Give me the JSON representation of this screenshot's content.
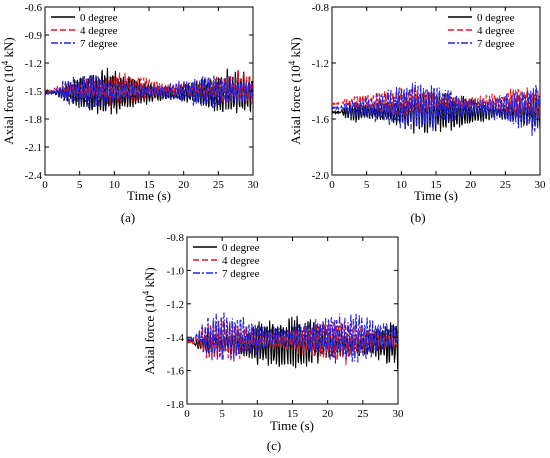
{
  "chart_data": [
    {
      "type": "line",
      "caption": "(a)",
      "xlabel": "Time (s)",
      "ylabel": "Axial force (10",
      "ylabel_sup": "4",
      "ylabel_tail": " kN)",
      "xlim": [
        0,
        30
      ],
      "ylim": [
        -2.4,
        -0.6
      ],
      "xticks": [
        0,
        5,
        10,
        15,
        20,
        25,
        30
      ],
      "yticks": [
        -2.4,
        -2.1,
        -1.8,
        -1.5,
        -1.2,
        -0.9,
        -0.6
      ],
      "ytick_labels": [
        "-2.4",
        "-2.1",
        "-1.8",
        "-1.5",
        "-1.2",
        "-0.9",
        "-0.6"
      ],
      "legend_position": "top-left",
      "series": [
        {
          "name": "0 degree",
          "color": "#000000",
          "dash": "solid",
          "baseline": -1.52,
          "start": -1.52,
          "amp": 0.17,
          "growth": 1.4,
          "seed": 11
        },
        {
          "name": "4 degree",
          "color": "#e8191f",
          "dash": "dashed",
          "baseline": -1.48,
          "start": -1.5,
          "amp": 0.12,
          "growth": 1.6,
          "seed": 23
        },
        {
          "name": "7 degree",
          "color": "#2323e0",
          "dash": "dashdot",
          "baseline": -1.5,
          "start": -1.52,
          "amp": 0.13,
          "growth": 1.5,
          "seed": 37
        }
      ]
    },
    {
      "type": "line",
      "caption": "(b)",
      "xlabel": "Time (s)",
      "ylabel": "Axial force (10",
      "ylabel_sup": "4",
      "ylabel_tail": " kN)",
      "xlim": [
        0,
        30
      ],
      "ylim": [
        -2.0,
        -0.8
      ],
      "xticks": [
        0,
        5,
        10,
        15,
        20,
        25,
        30
      ],
      "yticks": [
        -2.0,
        -1.6,
        -1.2,
        -0.8
      ],
      "ytick_labels": [
        "-2.0",
        "-1.6",
        "-1.2",
        "-0.8"
      ],
      "legend_position": "top-right",
      "series": [
        {
          "name": "0 degree",
          "color": "#000000",
          "dash": "solid",
          "baseline": -1.55,
          "start": -1.55,
          "amp": 0.12,
          "growth": 1.4,
          "seed": 53
        },
        {
          "name": "4 degree",
          "color": "#e8191f",
          "dash": "dashed",
          "baseline": -1.48,
          "start": -1.49,
          "amp": 0.07,
          "growth": 1.6,
          "seed": 67
        },
        {
          "name": "7 degree",
          "color": "#2323e0",
          "dash": "dashdot",
          "baseline": -1.52,
          "start": -1.52,
          "amp": 0.13,
          "growth": 1.5,
          "seed": 79
        }
      ]
    },
    {
      "type": "line",
      "caption": "(c)",
      "xlabel": "Time (s)",
      "ylabel": "Axial force (10",
      "ylabel_sup": "4",
      "ylabel_tail": " kN)",
      "xlim": [
        0,
        30
      ],
      "ylim": [
        -1.8,
        -0.8
      ],
      "xticks": [
        0,
        5,
        10,
        15,
        20,
        25,
        30
      ],
      "yticks": [
        -1.8,
        -1.6,
        -1.4,
        -1.2,
        -1.0,
        -0.8
      ],
      "ytick_labels": [
        "-1.8",
        "-1.6",
        "-1.4",
        "-1.2",
        "-1.0",
        "-0.8"
      ],
      "legend_position": "top-left",
      "series": [
        {
          "name": "0 degree",
          "color": "#000000",
          "dash": "solid",
          "baseline": -1.44,
          "start": -1.42,
          "amp": 0.12,
          "growth": 1.5,
          "seed": 97
        },
        {
          "name": "4 degree",
          "color": "#e8191f",
          "dash": "dashed",
          "baseline": -1.42,
          "start": -1.43,
          "amp": 0.1,
          "growth": 1.5,
          "seed": 101
        },
        {
          "name": "7 degree",
          "color": "#2323e0",
          "dash": "dashdot",
          "baseline": -1.4,
          "start": -1.41,
          "amp": 0.11,
          "growth": 1.5,
          "seed": 113
        }
      ]
    }
  ]
}
